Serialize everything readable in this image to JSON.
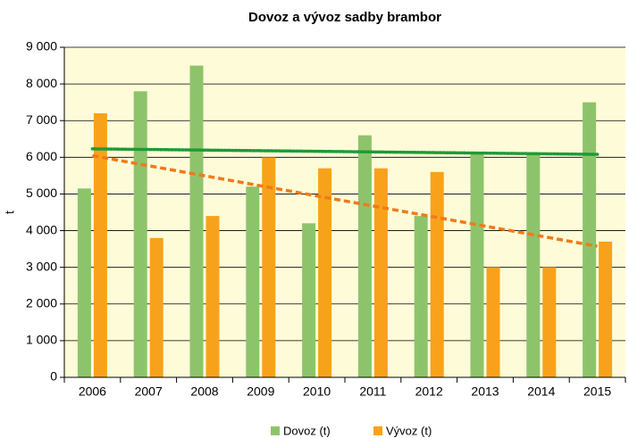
{
  "chart_data": {
    "type": "bar",
    "title": "Dovoz a vývoz sadby brambor",
    "y_label": "t",
    "categories": [
      "2006",
      "2007",
      "2008",
      "2009",
      "2010",
      "2011",
      "2012",
      "2013",
      "2014",
      "2015"
    ],
    "series": [
      {
        "name": "Dovoz (t)",
        "color": "#8dc46b",
        "values": [
          5150,
          7800,
          8500,
          5200,
          4200,
          6600,
          4400,
          6100,
          6100,
          7500
        ],
        "trendline": {
          "color": "#1f9a36",
          "dash": "dotted"
        }
      },
      {
        "name": "Vývoz (t)",
        "color": "#f8a21b",
        "values": [
          7200,
          3800,
          4400,
          6000,
          5700,
          5700,
          5600,
          3000,
          3000,
          3700
        ],
        "trendline": {
          "color": "#f07a1a",
          "dash": "dashed"
        }
      }
    ],
    "ylim": [
      0,
      9000
    ],
    "yticks": [
      0,
      {
        "value": 1000,
        "label": "1 000"
      },
      {
        "value": 2000,
        "label": "2 000"
      },
      {
        "value": 3000,
        "label": "3 000"
      },
      {
        "value": 4000,
        "label": "4 000"
      },
      {
        "value": 5000,
        "label": "5 000"
      },
      {
        "value": 6000,
        "label": "6 000"
      },
      {
        "value": 7000,
        "label": "7 000"
      },
      {
        "value": 8000,
        "label": "8 000"
      },
      {
        "value": 9000,
        "label": "9 000"
      }
    ],
    "grid": true,
    "plot_background": "#fefbd8",
    "legend": "bottom"
  }
}
